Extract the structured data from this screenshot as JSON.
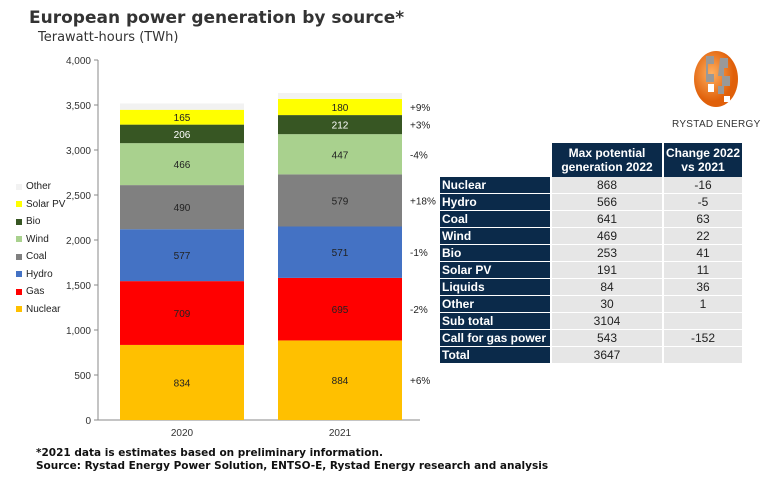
{
  "header": {
    "title": "European power generation by source*",
    "subtitle": "Terawatt-hours (TWh)"
  },
  "chart_data": {
    "type": "bar",
    "stacked": true,
    "title": "European power generation by source*",
    "ylabel": "Terawatt-hours (TWh)",
    "categories": [
      "2020",
      "2021"
    ],
    "ylim": [
      0,
      4000
    ],
    "yticks": [
      0,
      500,
      1000,
      1500,
      2000,
      2500,
      3000,
      3500,
      4000
    ],
    "ytick_labels": [
      "0",
      "500",
      "1,000",
      "1,500",
      "2,000",
      "2,500",
      "3,000",
      "3,500",
      "4,000"
    ],
    "legend_position": "left",
    "grid": false,
    "series": [
      {
        "name": "Nuclear",
        "color": "#ffc000",
        "values": [
          834,
          884
        ],
        "change": "+6%"
      },
      {
        "name": "Gas",
        "color": "#ff0000",
        "values": [
          709,
          695
        ],
        "change": "-2%"
      },
      {
        "name": "Hydro",
        "color": "#4472c4",
        "values": [
          577,
          571
        ],
        "change": "-1%"
      },
      {
        "name": "Coal",
        "color": "#808080",
        "values": [
          490,
          579
        ],
        "change": "+18%"
      },
      {
        "name": "Wind",
        "color": "#a9d18e",
        "values": [
          466,
          447
        ],
        "change": "-4%"
      },
      {
        "name": "Bio",
        "color": "#375623",
        "values": [
          206,
          212
        ],
        "change": "+3%"
      },
      {
        "name": "Solar PV",
        "color": "#ffff00",
        "values": [
          165,
          180
        ],
        "change": "+9%"
      },
      {
        "name": "Other",
        "color": "#f2f2f2",
        "values": [
          70,
          65
        ],
        "change": "",
        "labeled": false
      }
    ]
  },
  "table": {
    "headers": [
      "",
      "Max potential generation 2022",
      "Change 2022 vs 2021"
    ],
    "rows": [
      [
        "Nuclear",
        "868",
        "-16"
      ],
      [
        "Hydro",
        "566",
        "-5"
      ],
      [
        "Coal",
        "641",
        "63"
      ],
      [
        "Wind",
        "469",
        "22"
      ],
      [
        "Bio",
        "253",
        "41"
      ],
      [
        "Solar PV",
        "191",
        "11"
      ],
      [
        "Liquids",
        "84",
        "36"
      ],
      [
        "Other",
        "30",
        "1"
      ],
      [
        "Sub total",
        "3104",
        ""
      ],
      [
        "Call for gas power",
        "543",
        "-152"
      ],
      [
        "Total",
        "3647",
        ""
      ]
    ]
  },
  "logo": {
    "text": "RYSTAD ENERGY"
  },
  "notes": [
    "*2021 data is  estimates  based on preliminary  information.",
    "Source: Rystad Energy Power Solution,  ENTSO-E, Rystad Energy research and analysis"
  ]
}
